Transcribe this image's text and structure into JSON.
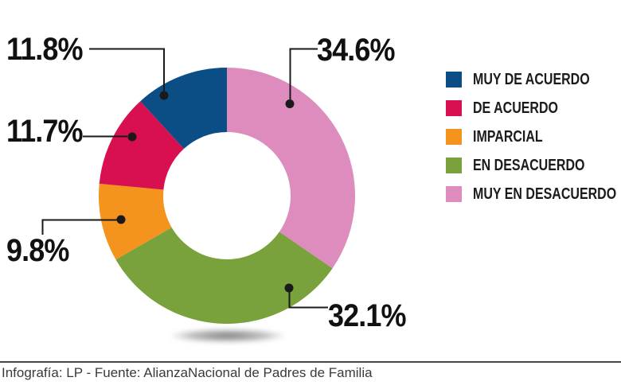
{
  "chart_data": {
    "type": "pie",
    "subtype": "donut",
    "title": "",
    "legend_position": "right",
    "start_angle_deg": 0,
    "direction": "clockwise",
    "segments": [
      {
        "label": "MUY DE ACUERDO",
        "value": 11.8,
        "pct_label": "11.8%",
        "color": "#0b4e86"
      },
      {
        "label": "DE ACUERDO",
        "value": 11.7,
        "pct_label": "11.7%",
        "color": "#d9104f"
      },
      {
        "label": "IMPARCIAL",
        "value": 9.8,
        "pct_label": "9.8%",
        "color": "#f4941f"
      },
      {
        "label": "EN DESACUERDO",
        "value": 32.1,
        "pct_label": "32.1%",
        "color": "#7aa23c"
      },
      {
        "label": "MUY EN DESACUERDO",
        "value": 34.6,
        "pct_label": "34.6%",
        "color": "#dd8cbd"
      }
    ],
    "line_color": "#1a1a1a"
  },
  "footer": {
    "credit": "Infografía: LP - Fuente: AlianzaNacional de Padres de Familia"
  }
}
